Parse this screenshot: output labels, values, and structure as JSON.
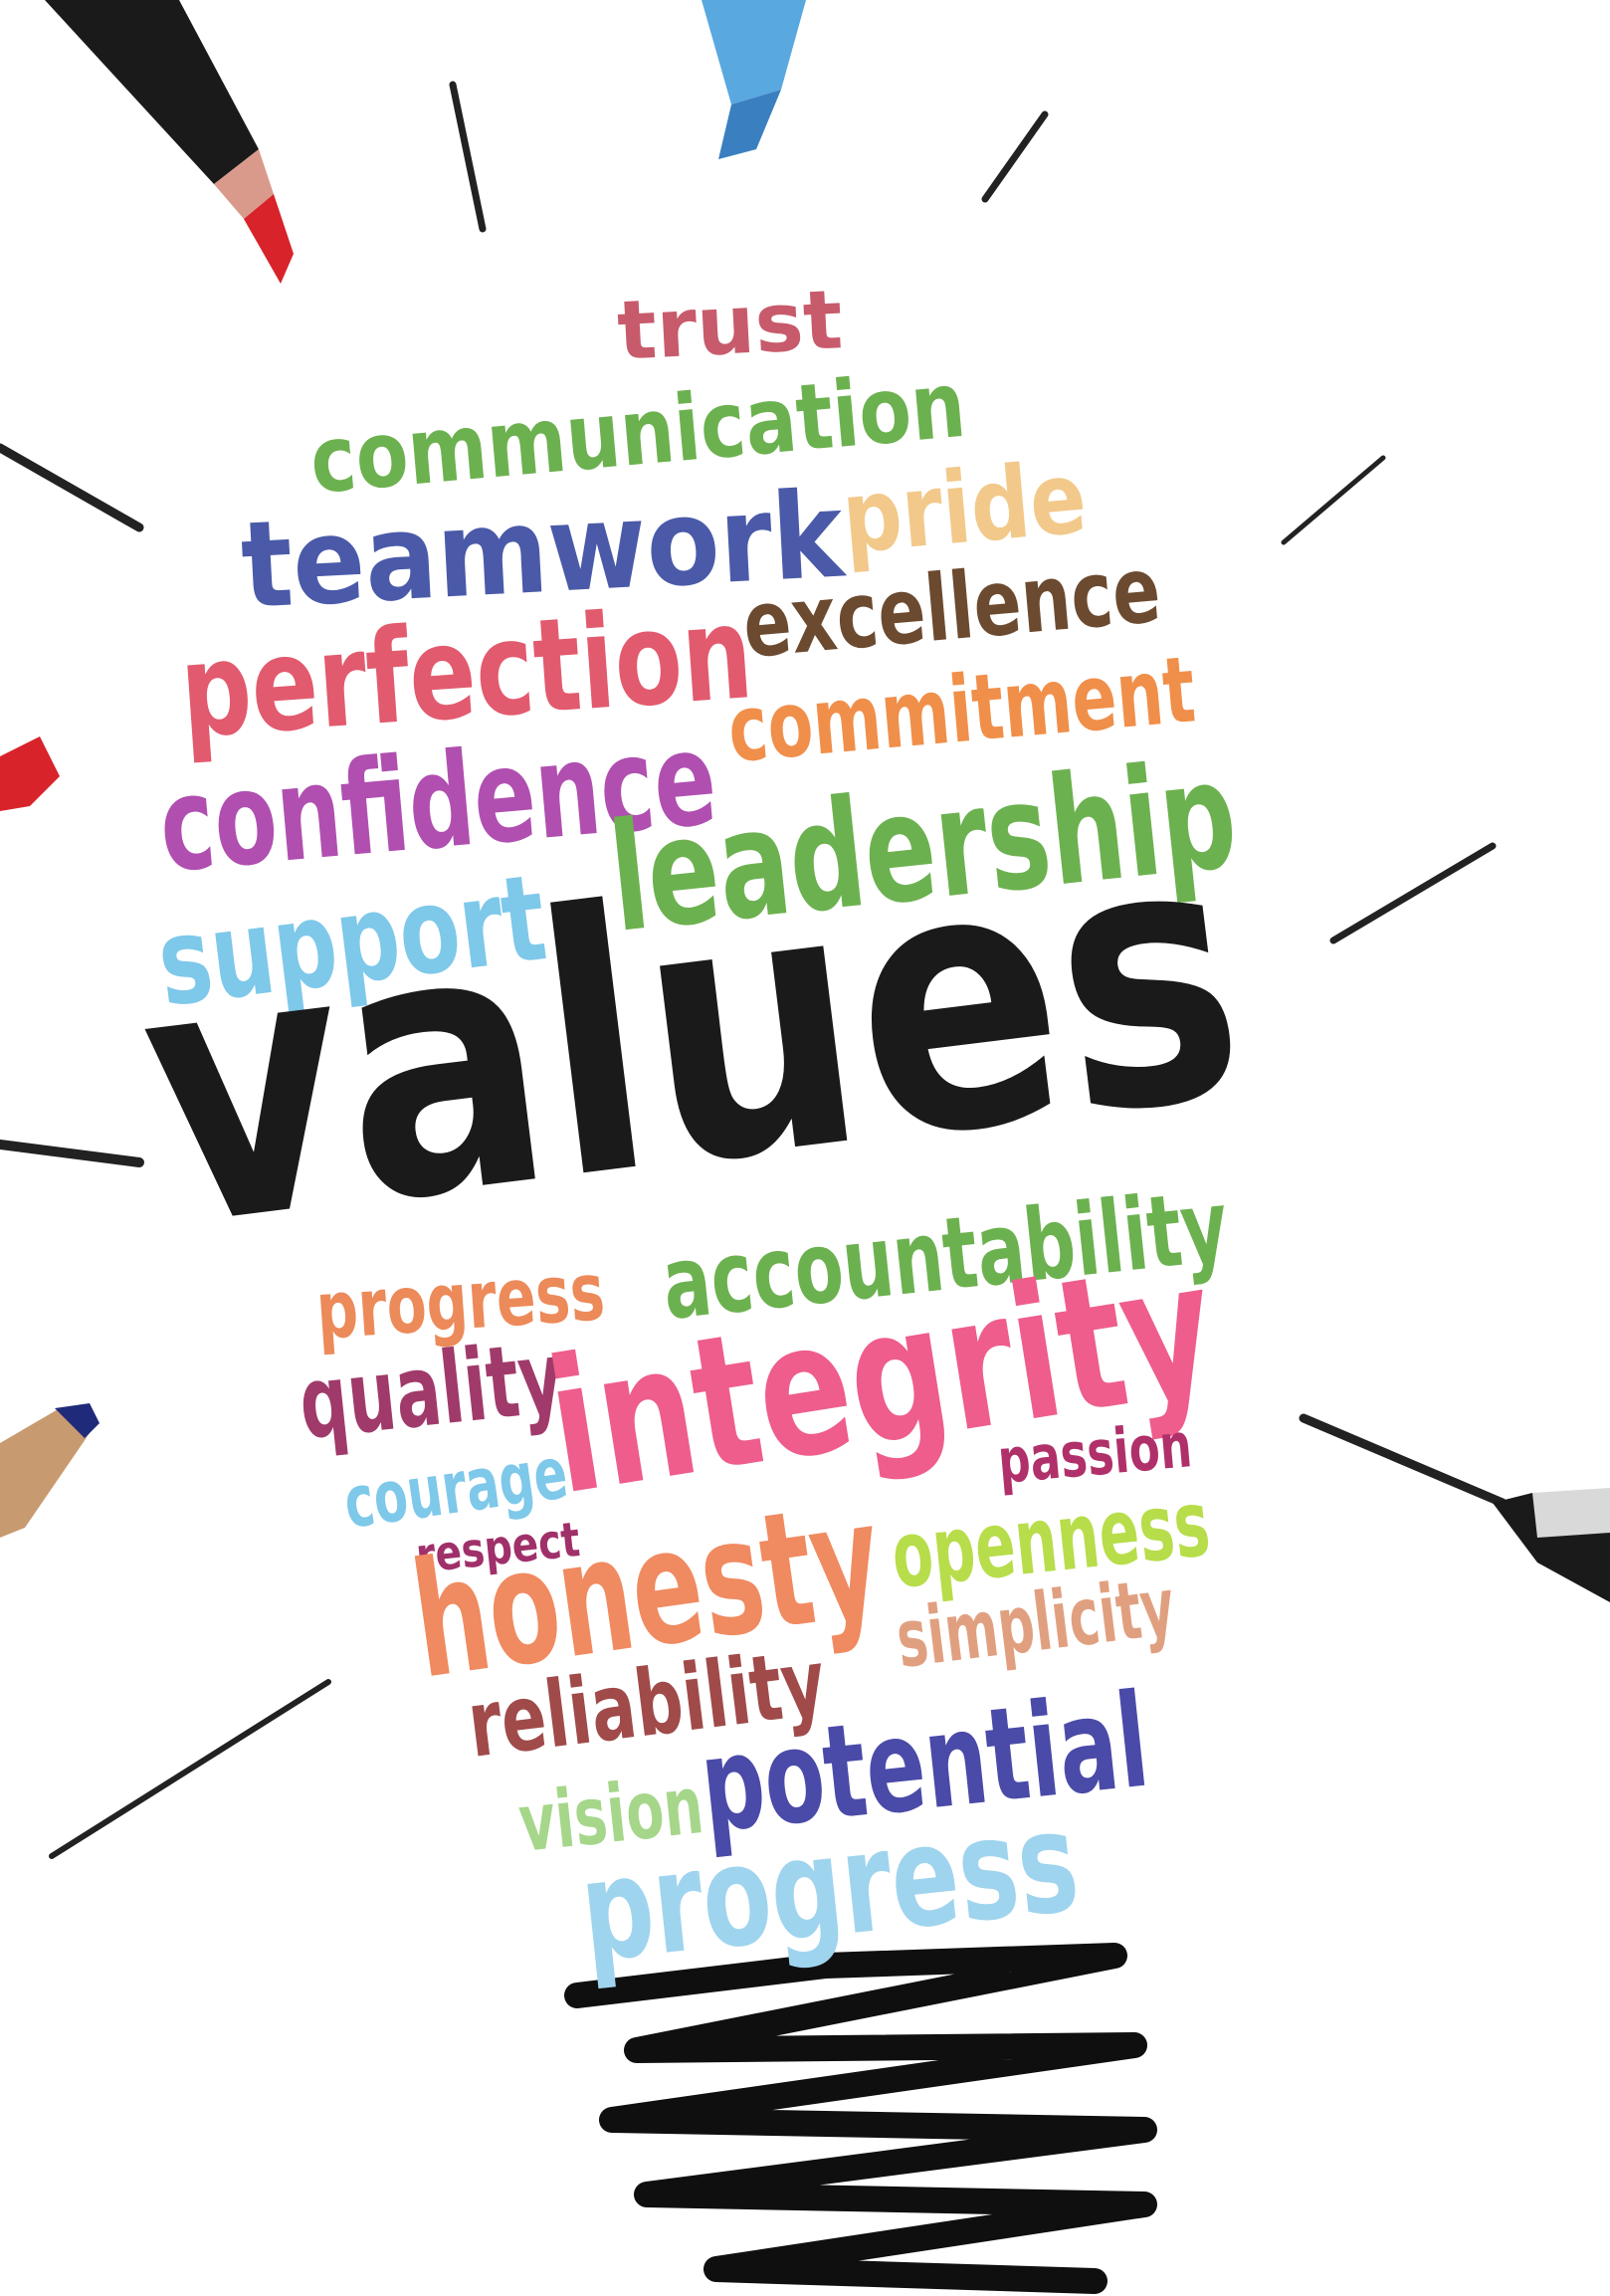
{
  "main_word": {
    "text": "values",
    "color": "#1a1a1a"
  },
  "words": [
    {
      "id": "trust",
      "text": "trust",
      "color": "#c75b6b"
    },
    {
      "id": "communication",
      "text": "communication",
      "color": "#6cb14f"
    },
    {
      "id": "teamwork",
      "text": "teamwork",
      "color": "#4a5aa8"
    },
    {
      "id": "pride",
      "text": "pride",
      "color": "#f2c98a"
    },
    {
      "id": "perfection",
      "text": "perfection",
      "color": "#e25a6e"
    },
    {
      "id": "excellence",
      "text": "excellence",
      "color": "#6b4a30"
    },
    {
      "id": "confidence",
      "text": "confidence",
      "color": "#b04fb0"
    },
    {
      "id": "commitment",
      "text": "commitment",
      "color": "#f08f4a"
    },
    {
      "id": "leadership",
      "text": "leadership",
      "color": "#6cb14f"
    },
    {
      "id": "support",
      "text": "support",
      "color": "#7ec8ea"
    },
    {
      "id": "progress-top",
      "text": "progress",
      "color": "#ec8a5a"
    },
    {
      "id": "accountability",
      "text": "accountability",
      "color": "#6cb14f"
    },
    {
      "id": "quality",
      "text": "quality",
      "color": "#a03a6a"
    },
    {
      "id": "integrity",
      "text": "integrity",
      "color": "#ee5d8c"
    },
    {
      "id": "courage",
      "text": "courage",
      "color": "#7ec8ea"
    },
    {
      "id": "passion",
      "text": "passion",
      "color": "#b0306a"
    },
    {
      "id": "respect",
      "text": "respect",
      "color": "#a0306a"
    },
    {
      "id": "honesty",
      "text": "honesty",
      "color": "#f08a60"
    },
    {
      "id": "openness",
      "text": "openness",
      "color": "#b7dd4a"
    },
    {
      "id": "simplicity",
      "text": "simplicity",
      "color": "#e0a080"
    },
    {
      "id": "reliability",
      "text": "reliability",
      "color": "#a04a4a"
    },
    {
      "id": "vision",
      "text": "vision",
      "color": "#a6d68a"
    },
    {
      "id": "potential",
      "text": "potential",
      "color": "#4a4aa8"
    },
    {
      "id": "progress-bottom",
      "text": "progress",
      "color": "#9fd4ee"
    }
  ],
  "colors": {
    "rays": "#222222",
    "screw": "#0f0f0f",
    "marker_red": "#d8232a",
    "marker_blue": "#5aa8e0",
    "marker_navy": "#1f2a7a",
    "marker_body": "#1a1a1a",
    "marker_tip_accent": "#d99a8c"
  },
  "icons": [
    "lightbulb-outline-icon",
    "marker-pen-icon"
  ]
}
